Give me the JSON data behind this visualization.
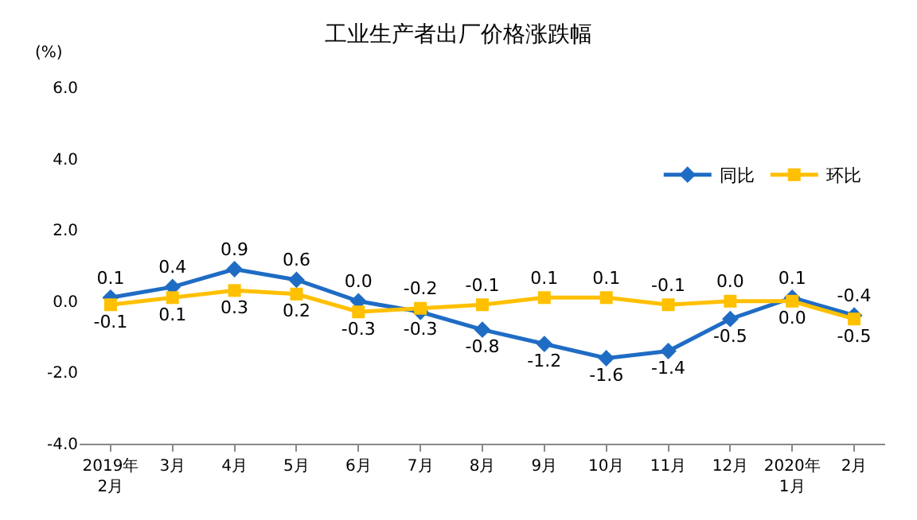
{
  "chart_data": {
    "type": "line",
    "title": "工业生产者出厂价格涨跌幅",
    "ylabel": "(%)",
    "categories": [
      "2019年\n2月",
      "3月",
      "4月",
      "5月",
      "6月",
      "7月",
      "8月",
      "9月",
      "10月",
      "11月",
      "12月",
      "2020年\n1月",
      "2月"
    ],
    "series": [
      {
        "name": "同比",
        "color": "#1f6cc4",
        "marker": "diamond",
        "values": [
          0.1,
          0.4,
          0.9,
          0.6,
          0.0,
          -0.3,
          -0.8,
          -1.2,
          -1.6,
          -1.4,
          -0.5,
          0.1,
          -0.4
        ],
        "value_labels": [
          "0.1",
          "0.4",
          "0.9",
          "0.6",
          "0.0",
          "-0.3",
          "-0.8",
          "-1.2",
          "-1.6",
          "-1.4",
          "-0.5",
          "0.1",
          "-0.4"
        ]
      },
      {
        "name": "环比",
        "color": "#ffc000",
        "marker": "square",
        "values": [
          -0.1,
          0.1,
          0.3,
          0.2,
          -0.3,
          -0.2,
          -0.1,
          0.1,
          0.1,
          -0.1,
          0.0,
          0.0,
          -0.5
        ],
        "value_labels": [
          "-0.1",
          "0.1",
          "0.3",
          "0.2",
          "-0.3",
          "-0.2",
          "-0.1",
          "0.1",
          "0.1",
          "-0.1",
          "0.0",
          "0.0",
          "-0.5"
        ]
      }
    ],
    "ylim": [
      -4,
      6
    ],
    "yticks": [
      {
        "value": -4,
        "label": "-4.0"
      },
      {
        "value": -2,
        "label": "-2.0"
      },
      {
        "value": 0,
        "label": "0.0"
      },
      {
        "value": 2,
        "label": "2.0"
      },
      {
        "value": 4,
        "label": "4.0"
      },
      {
        "value": 6,
        "label": "6.0"
      }
    ],
    "legend": "top right",
    "line_style": "solid"
  }
}
